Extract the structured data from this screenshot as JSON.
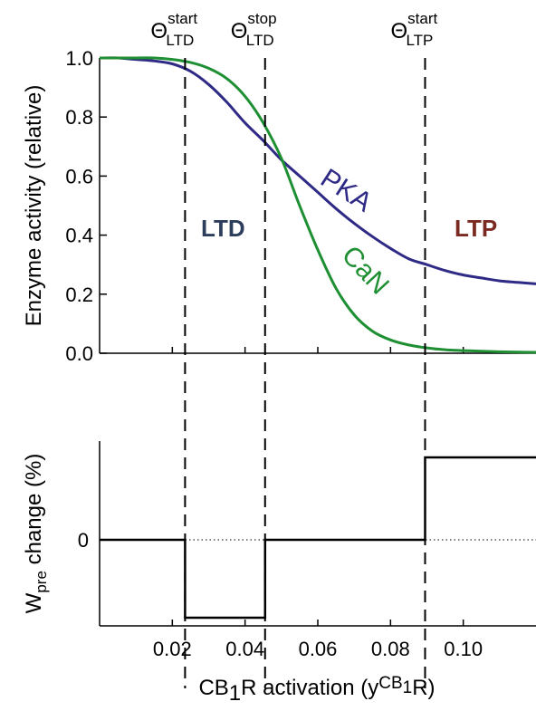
{
  "chart_data": [
    {
      "type": "line",
      "ylabel": "Enzyme activity (relative)",
      "xlim": [
        0.0,
        0.12
      ],
      "ylim": [
        0.0,
        1.0
      ],
      "yticks": [
        0.0,
        0.2,
        0.4,
        0.6,
        0.8,
        1.0
      ],
      "ytick_labels": [
        "0.0",
        "0.2",
        "0.4",
        "0.6",
        "0.8",
        "1.0"
      ],
      "x": [
        0.0,
        0.005,
        0.01,
        0.015,
        0.02,
        0.025,
        0.03,
        0.035,
        0.04,
        0.045,
        0.05,
        0.055,
        0.06,
        0.065,
        0.07,
        0.075,
        0.08,
        0.085,
        0.09,
        0.095,
        0.1,
        0.105,
        0.11,
        0.115,
        0.12
      ],
      "series": [
        {
          "name": "PKA",
          "color": "#2e2a85",
          "values": [
            1.0,
            1.0,
            0.995,
            0.99,
            0.98,
            0.955,
            0.91,
            0.85,
            0.78,
            0.72,
            0.655,
            0.6,
            0.545,
            0.49,
            0.44,
            0.395,
            0.355,
            0.32,
            0.3,
            0.28,
            0.265,
            0.255,
            0.245,
            0.24,
            0.235
          ]
        },
        {
          "name": "CaN",
          "color": "#1e8f32",
          "values": [
            1.0,
            1.0,
            1.0,
            1.0,
            0.995,
            0.985,
            0.965,
            0.93,
            0.87,
            0.78,
            0.66,
            0.5,
            0.35,
            0.22,
            0.13,
            0.075,
            0.045,
            0.028,
            0.018,
            0.012,
            0.009,
            0.007,
            0.005,
            0.004,
            0.003
          ]
        }
      ],
      "curve_labels": {
        "pka": "PKA",
        "can": "CaN"
      },
      "region_labels": [
        {
          "text": "LTD",
          "color": "#2c3e5b"
        },
        {
          "text": "LTP",
          "color": "#7b2a22"
        }
      ]
    },
    {
      "type": "line",
      "ylabel_main": "W",
      "ylabel_sub": "pre",
      "ylabel_rest": " change (%)",
      "xlabel_main": "CB",
      "xlabel_sub": "1",
      "xlabel_mid": "R activation (y",
      "xlabel_sup": "CB",
      "xlabel_sup_sub": "1",
      "xlabel_end": "R)",
      "xlim": [
        0.0,
        0.12
      ],
      "xticks": [
        0.02,
        0.04,
        0.06,
        0.08,
        0.1
      ],
      "xtick_labels": [
        "0.02",
        "0.04",
        "0.06",
        "0.08",
        "0.10"
      ],
      "ytick_labels": [
        "0"
      ],
      "zero_line": "dotted",
      "step_levels": {
        "ltd": -1,
        "neutral": 0,
        "ltp": 1
      },
      "step_x": [
        0.0,
        0.0235,
        0.0235,
        0.0455,
        0.0455,
        0.0895,
        0.0895,
        0.12
      ],
      "step_y": [
        0,
        0,
        -1,
        -1,
        0,
        0,
        1,
        1
      ]
    }
  ],
  "thresholds": [
    {
      "x": 0.0235,
      "label": "Θ",
      "sup": "start",
      "sub": "LTD"
    },
    {
      "x": 0.0455,
      "label": "Θ",
      "sup": "stop",
      "sub": "LTD"
    },
    {
      "x": 0.0895,
      "label": "Θ",
      "sup": "start",
      "sub": "LTP"
    }
  ]
}
